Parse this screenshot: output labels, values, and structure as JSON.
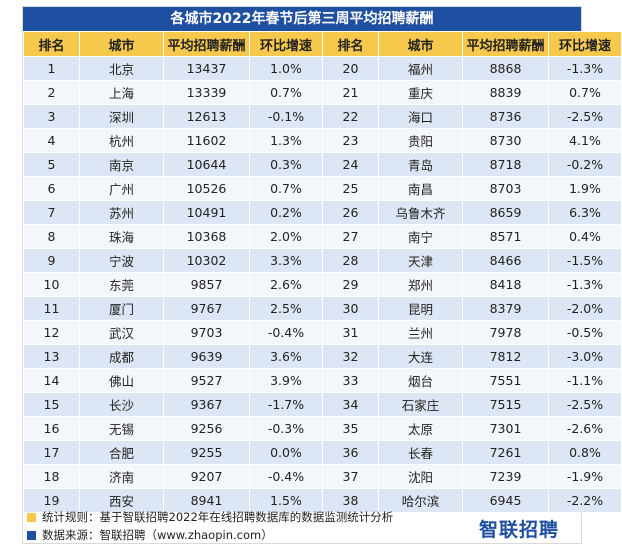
{
  "title": "各城市2022年春节后第三周平均招聘薪酬",
  "headers": [
    "排名",
    "城市",
    "平均招聘薪酬",
    "环比增速",
    "排名",
    "城市",
    "平均招聘薪酬",
    "环比增速"
  ],
  "left_rows": [
    {
      "rank": "1",
      "city": "北京",
      "salary": "13437",
      "change": "1.0%"
    },
    {
      "rank": "2",
      "city": "上海",
      "salary": "13339",
      "change": "0.7%"
    },
    {
      "rank": "3",
      "city": "深圳",
      "salary": "12613",
      "change": "-0.1%"
    },
    {
      "rank": "4",
      "city": "杭州",
      "salary": "11602",
      "change": "1.3%"
    },
    {
      "rank": "5",
      "city": "南京",
      "salary": "10644",
      "change": "0.3%"
    },
    {
      "rank": "6",
      "city": "广州",
      "salary": "10526",
      "change": "0.7%"
    },
    {
      "rank": "7",
      "city": "苏州",
      "salary": "10491",
      "change": "0.2%"
    },
    {
      "rank": "8",
      "city": "珠海",
      "salary": "10368",
      "change": "2.0%"
    },
    {
      "rank": "9",
      "city": "宁波",
      "salary": "10302",
      "change": "3.3%"
    },
    {
      "rank": "10",
      "city": "东莞",
      "salary": "9857",
      "change": "2.6%"
    },
    {
      "rank": "11",
      "city": "厦门",
      "salary": "9767",
      "change": "2.5%"
    },
    {
      "rank": "12",
      "city": "武汉",
      "salary": "9703",
      "change": "-0.4%"
    },
    {
      "rank": "13",
      "city": "成都",
      "salary": "9639",
      "change": "3.6%"
    },
    {
      "rank": "14",
      "city": "佛山",
      "salary": "9527",
      "change": "3.9%"
    },
    {
      "rank": "15",
      "city": "长沙",
      "salary": "9367",
      "change": "-1.7%"
    },
    {
      "rank": "16",
      "city": "无锡",
      "salary": "9256",
      "change": "-0.3%"
    },
    {
      "rank": "17",
      "city": "合肥",
      "salary": "9255",
      "change": "0.0%"
    },
    {
      "rank": "18",
      "city": "济南",
      "salary": "9207",
      "change": "-0.4%"
    },
    {
      "rank": "19",
      "city": "西安",
      "salary": "8941",
      "change": "1.5%"
    }
  ],
  "right_rows": [
    {
      "rank": "20",
      "city": "福州",
      "salary": "8868",
      "change": "-1.3%"
    },
    {
      "rank": "21",
      "city": "重庆",
      "salary": "8839",
      "change": "0.7%"
    },
    {
      "rank": "22",
      "city": "海口",
      "salary": "8736",
      "change": "-2.5%"
    },
    {
      "rank": "23",
      "city": "贵阳",
      "salary": "8730",
      "change": "4.1%"
    },
    {
      "rank": "24",
      "city": "青岛",
      "salary": "8718",
      "change": "-0.2%"
    },
    {
      "rank": "25",
      "city": "南昌",
      "salary": "8703",
      "change": "1.9%"
    },
    {
      "rank": "26",
      "city": "乌鲁木齐",
      "salary": "8659",
      "change": "6.3%"
    },
    {
      "rank": "27",
      "city": "南宁",
      "salary": "8571",
      "change": "0.4%"
    },
    {
      "rank": "28",
      "city": "天津",
      "salary": "8466",
      "change": "-1.5%"
    },
    {
      "rank": "29",
      "city": "郑州",
      "salary": "8418",
      "change": "-1.3%"
    },
    {
      "rank": "30",
      "city": "昆明",
      "salary": "8379",
      "change": "-2.0%"
    },
    {
      "rank": "31",
      "city": "兰州",
      "salary": "7978",
      "change": "-0.5%"
    },
    {
      "rank": "32",
      "city": "大连",
      "salary": "7812",
      "change": "-3.0%"
    },
    {
      "rank": "33",
      "city": "烟台",
      "salary": "7551",
      "change": "-1.1%"
    },
    {
      "rank": "34",
      "city": "石家庄",
      "salary": "7515",
      "change": "-2.5%"
    },
    {
      "rank": "35",
      "city": "太原",
      "salary": "7301",
      "change": "-2.6%"
    },
    {
      "rank": "36",
      "city": "长春",
      "salary": "7261",
      "change": "0.8%"
    },
    {
      "rank": "37",
      "city": "沈阳",
      "salary": "7239",
      "change": "-1.9%"
    },
    {
      "rank": "38",
      "city": "哈尔滨",
      "salary": "6945",
      "change": "-2.2%"
    }
  ],
  "footer": {
    "rule_label": "统计规则：基于智联招聘2022年在线招聘数据库的数据监测统计分析",
    "source_label": "数据来源：智联招聘（www.zhaopin.com）",
    "brand": "智联招聘"
  },
  "colors": {
    "title_bg": "#1f4fa0",
    "header_bg": "#f6c84b",
    "row_blue": "#dde6f4",
    "rule_swatch": "#f6c84b",
    "source_swatch": "#1f4fa0"
  }
}
